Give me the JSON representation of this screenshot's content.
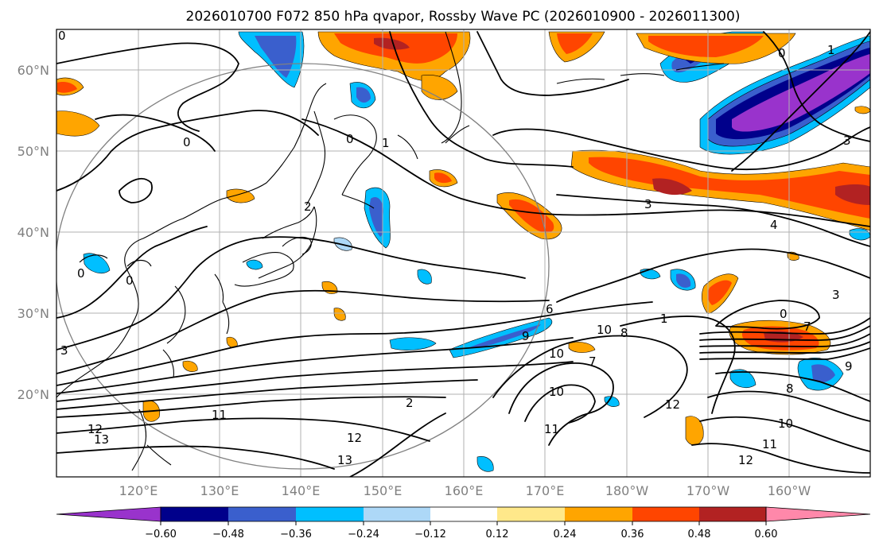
{
  "title": "2026010700 F072 850 hPa qvapor, Rossby Wave PC (2026010900 - 2026011300)",
  "lat_ticks": [
    "60°N",
    "50°N",
    "40°N",
    "30°N",
    "20°N"
  ],
  "lon_ticks": [
    "120°E",
    "130°E",
    "140°E",
    "150°E",
    "160°E",
    "170°E",
    "180°W",
    "170°W",
    "160°W"
  ],
  "colorbar": {
    "ticks": [
      "−0.60",
      "−0.48",
      "−0.36",
      "−0.24",
      "−0.12",
      "0.12",
      "0.24",
      "0.36",
      "0.48",
      "0.60"
    ],
    "colors": [
      "#9933cc",
      "#00008b",
      "#3a5fcd",
      "#00bfff",
      "#add8f7",
      "#ffffff",
      "#ffe88a",
      "#ffa500",
      "#ff4500",
      "#b22222",
      "#ff88aa"
    ]
  },
  "contour_labels": {
    "c0a": "0",
    "c0b": "0",
    "c0c": "0",
    "c0d": "0",
    "c0e": "0",
    "c0f": "0",
    "c0g": "0",
    "c1a": "1",
    "c1b": "1",
    "c1c": "1",
    "c2a": "2",
    "c2b": "2",
    "c3a": "3",
    "c3b": "3",
    "c3c": "3",
    "c3d": "3",
    "c4a": "4",
    "c6a": "6",
    "c7a": "7",
    "c7b": "7",
    "c8a": "8",
    "c8b": "8",
    "c9a": "9",
    "c9b": "9",
    "c10a": "10",
    "c10b": "10",
    "c10c": "10",
    "c10d": "10",
    "c11a": "11",
    "c11b": "11",
    "c11c": "11",
    "c12a": "12",
    "c12b": "12",
    "c12c": "12",
    "c12d": "12",
    "c13a": "13",
    "c13b": "13"
  }
}
